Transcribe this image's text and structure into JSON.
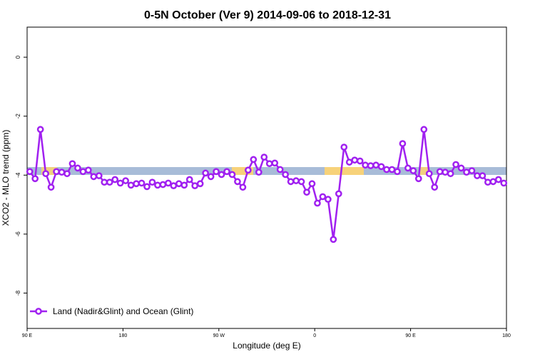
{
  "chart_data": {
    "type": "line",
    "title": "0-5N October (Ver 9)   2014-09-06 to 2018-12-31",
    "x_label": "Longitude (deg E)",
    "y_label": "XCO2 - MLO trend (ppm)",
    "x": [
      92.5,
      97.5,
      102.5,
      107.5,
      112.5,
      117.5,
      122.5,
      127.5,
      132.5,
      137.5,
      142.5,
      147.5,
      152.5,
      157.5,
      162.5,
      167.5,
      172.5,
      177.5,
      182.5,
      187.5,
      192.5,
      197.5,
      202.5,
      207.5,
      212.5,
      217.5,
      222.5,
      227.5,
      232.5,
      237.5,
      242.5,
      247.5,
      252.5,
      257.5,
      262.5,
      267.5,
      272.5,
      277.5,
      282.5,
      287.5,
      292.5,
      297.5,
      302.5,
      307.5,
      312.5,
      317.5,
      322.5,
      327.5,
      332.5,
      337.5,
      342.5,
      347.5,
      352.5,
      357.5,
      362.5,
      367.5,
      372.5,
      377.5,
      382.5,
      387.5,
      392.5,
      397.5,
      402.5,
      407.5,
      412.5,
      417.5,
      422.5,
      427.5,
      432.5,
      437.5,
      442.5,
      447.5,
      452.5,
      457.5,
      462.5,
      467.5,
      472.5,
      477.5,
      482.5,
      487.5,
      492.5,
      497.5,
      502.5,
      507.5,
      512.5,
      517.5,
      522.5,
      527.5,
      532.5,
      537.5
    ],
    "series": [
      {
        "name": "Land (Nadir&Glint) and Ocean (Glint)",
        "color": "#a020f0",
        "values": [
          -3.88,
          -4.12,
          -2.45,
          -3.95,
          -4.41,
          -3.88,
          -3.9,
          -3.95,
          -3.61,
          -3.76,
          -3.88,
          -3.83,
          -4.05,
          -4.02,
          -4.24,
          -4.24,
          -4.15,
          -4.27,
          -4.19,
          -4.34,
          -4.29,
          -4.27,
          -4.39,
          -4.24,
          -4.34,
          -4.32,
          -4.27,
          -4.36,
          -4.29,
          -4.34,
          -4.15,
          -4.36,
          -4.29,
          -3.93,
          -4.05,
          -3.88,
          -3.98,
          -3.88,
          -3.98,
          -4.22,
          -4.41,
          -3.83,
          -3.47,
          -3.9,
          -3.39,
          -3.61,
          -3.59,
          -3.81,
          -3.98,
          -4.22,
          -4.19,
          -4.22,
          -4.58,
          -4.29,
          -4.95,
          -4.73,
          -4.82,
          -6.18,
          -4.63,
          -3.05,
          -3.56,
          -3.49,
          -3.52,
          -3.66,
          -3.68,
          -3.66,
          -3.71,
          -3.81,
          -3.81,
          -3.88,
          -2.93,
          -3.76,
          -3.85,
          -4.12,
          -2.45,
          -3.95,
          -4.41,
          -3.88,
          -3.9,
          -3.95,
          -3.64,
          -3.76,
          -3.9,
          -3.85,
          -4.02,
          -4.02,
          -4.24,
          -4.22,
          -4.15,
          -4.27
        ]
      }
    ],
    "xlim": [
      90,
      540
    ],
    "xticks": [
      {
        "value": 90,
        "label": "90 E"
      },
      {
        "value": 180,
        "label": "180"
      },
      {
        "value": 270,
        "label": "90 W"
      },
      {
        "value": 360,
        "label": "0"
      },
      {
        "value": 450,
        "label": "90 E"
      },
      {
        "value": 540,
        "label": "180"
      }
    ],
    "ylim": [
      -9.2,
      1.02
    ],
    "yticks": [
      0,
      -2,
      -4,
      -6,
      -8
    ],
    "legend": "bottom-left"
  }
}
